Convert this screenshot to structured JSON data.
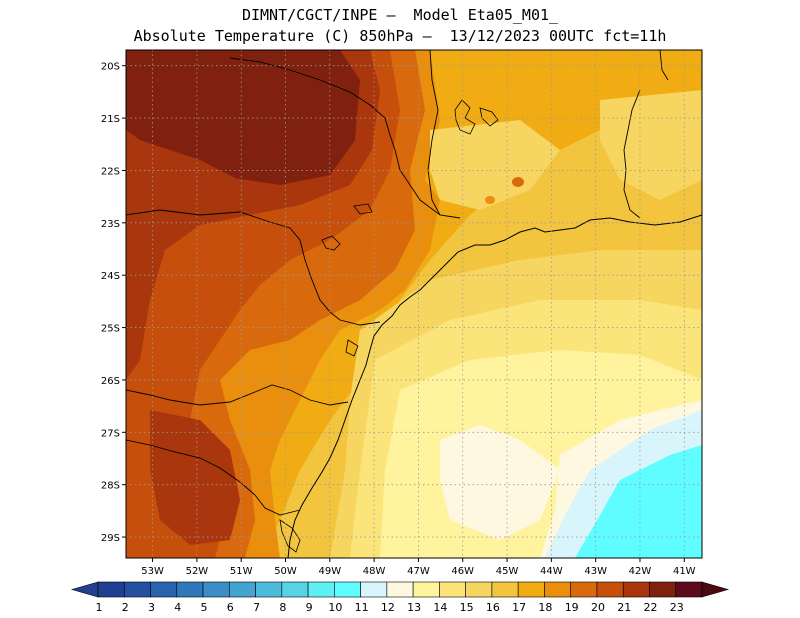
{
  "header": {
    "line1": "DIMNT/CGCT/INPE –  Model Eta05_M01_",
    "line2": "Absolute Temperature (C) 850hPa –  13/12/2023 00UTC fct=11h"
  },
  "map": {
    "lat_labels": [
      "20S",
      "21S",
      "22S",
      "23S",
      "24S",
      "25S",
      "26S",
      "27S",
      "28S",
      "29S"
    ],
    "lon_labels": [
      "53W",
      "52W",
      "51W",
      "50W",
      "49W",
      "48W",
      "47W",
      "46W",
      "45W",
      "44W",
      "43W",
      "42W",
      "41W"
    ],
    "lat_range": [
      -29.4,
      -19.7
    ],
    "lon_range": [
      -53.6,
      -40.6
    ],
    "grid": "dotted"
  },
  "colorbar": {
    "labels": [
      "1",
      "2",
      "3",
      "4",
      "5",
      "6",
      "7",
      "8",
      "9",
      "10",
      "11",
      "12",
      "13",
      "14",
      "15",
      "16",
      "17",
      "18",
      "19",
      "20",
      "21",
      "22",
      "23"
    ],
    "colors": [
      "#1f3f93",
      "#23509f",
      "#2a63ad",
      "#2f78bc",
      "#3a8dc6",
      "#43a4d1",
      "#4dbcdc",
      "#56d4e6",
      "#5ef0f2",
      "#5ffdff",
      "#d8f5fb",
      "#fff8e0",
      "#fff49d",
      "#fbe57a",
      "#f6d560",
      "#f3c43e",
      "#f0ac12",
      "#e98e0d",
      "#d9690d",
      "#c74f0c",
      "#a9360c",
      "#80200e",
      "#5c0b1c"
    ],
    "low_end_color": "#243f8f",
    "high_end_color": "#4a0a0f"
  }
}
